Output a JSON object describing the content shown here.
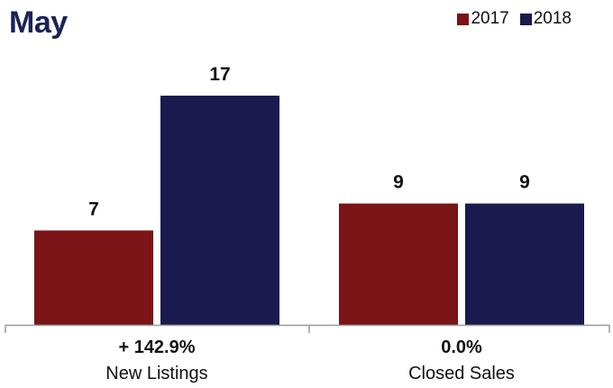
{
  "chart_data": {
    "type": "bar",
    "title": "May",
    "categories": [
      "New Listings",
      "Closed Sales"
    ],
    "category_changes": [
      "+ 142.9%",
      "0.0%"
    ],
    "series": [
      {
        "name": "2017",
        "color": "#7a1416",
        "values": [
          7,
          9
        ]
      },
      {
        "name": "2018",
        "color": "#1a1a4e",
        "values": [
          17,
          9
        ]
      }
    ],
    "ylim": [
      0,
      20
    ],
    "xlabel": "",
    "ylabel": "",
    "grid": false,
    "legend_position": "top-right"
  }
}
